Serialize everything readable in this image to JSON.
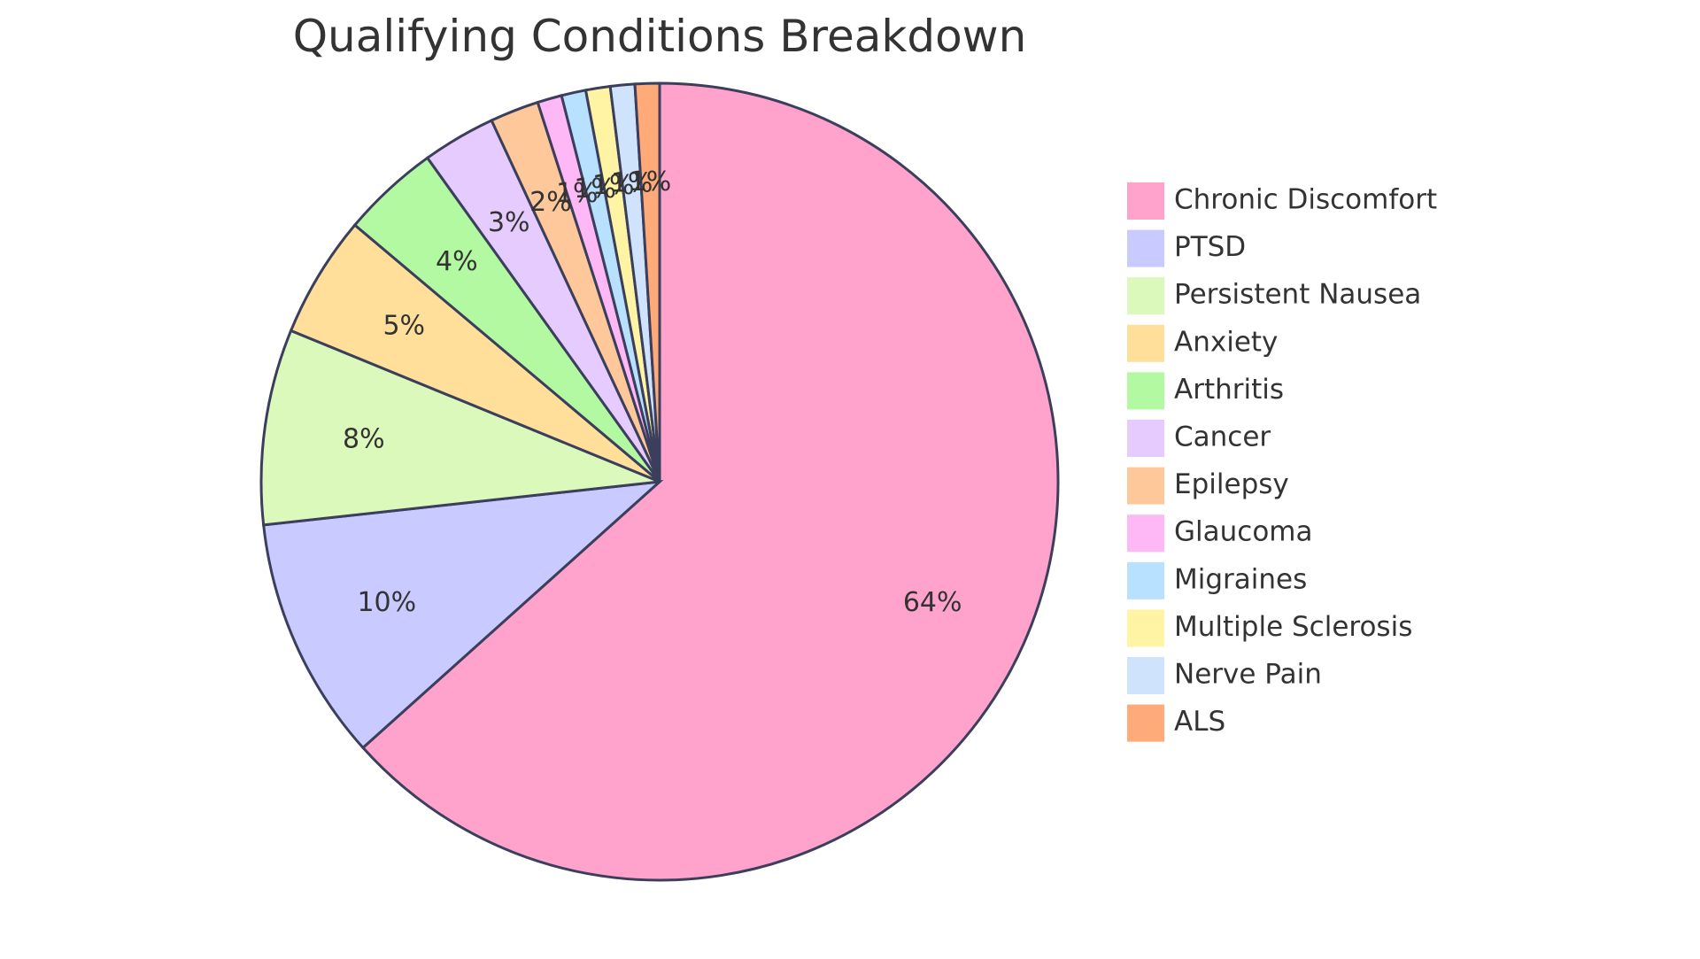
{
  "chart_data": {
    "type": "pie",
    "title": "Qualifying Conditions Breakdown",
    "categories": [
      "Chronic Discomfort",
      "PTSD",
      "Persistent Nausea",
      "Anxiety",
      "Arthritis",
      "Cancer",
      "Epilepsy",
      "Glaucoma",
      "Migraines",
      "Multiple Sclerosis",
      "Nerve Pain",
      "ALS"
    ],
    "values": [
      64,
      10,
      8,
      5,
      4,
      3,
      2,
      1,
      1,
      1,
      1,
      1
    ],
    "labels": [
      "64%",
      "10%",
      "8%",
      "5%",
      "4%",
      "3%",
      "2%",
      "1%",
      "1%",
      "1%",
      "1%",
      "1%"
    ],
    "colors": [
      "#ffa3cd",
      "#c9caff",
      "#dbf9bb",
      "#ffdf99",
      "#b3f9a2",
      "#e6cbfe",
      "#ffc89b",
      "#ffb8f6",
      "#b8e0ff",
      "#fff4a3",
      "#cfe3fc",
      "#ffaa78"
    ],
    "legend_position": "right"
  }
}
